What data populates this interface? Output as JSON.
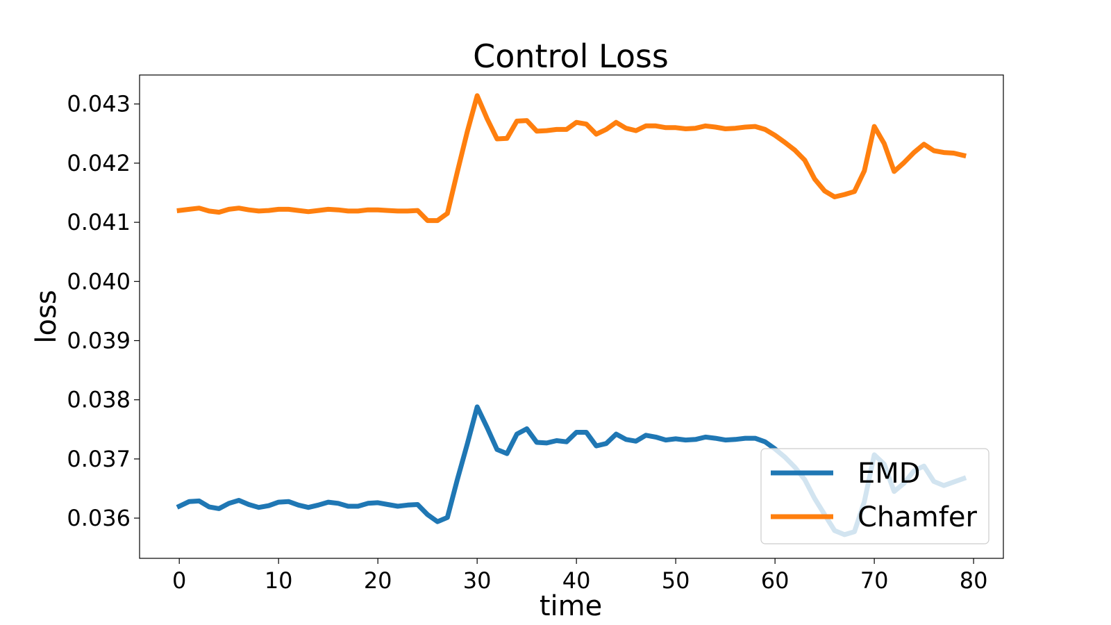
{
  "chart_data": {
    "type": "line",
    "title": "Control Loss",
    "xlabel": "time",
    "ylabel": "loss",
    "xlim": [
      -4,
      83
    ],
    "ylim": [
      0.03532,
      0.04349
    ],
    "xticks": [
      0,
      10,
      20,
      30,
      40,
      50,
      60,
      70,
      80
    ],
    "xtick_labels": [
      "0",
      "10",
      "20",
      "30",
      "40",
      "50",
      "60",
      "70",
      "80"
    ],
    "yticks": [
      0.036,
      0.037,
      0.038,
      0.039,
      0.04,
      0.041,
      0.042,
      0.043
    ],
    "ytick_labels": [
      "0.036",
      "0.037",
      "0.038",
      "0.039",
      "0.040",
      "0.041",
      "0.042",
      "0.043"
    ],
    "grid": false,
    "legend_position": "bottom-right",
    "x": [
      0,
      1,
      2,
      3,
      4,
      5,
      6,
      7,
      8,
      9,
      10,
      11,
      12,
      13,
      14,
      15,
      16,
      17,
      18,
      19,
      20,
      21,
      22,
      23,
      24,
      25,
      26,
      27,
      28,
      29,
      30,
      31,
      32,
      33,
      34,
      35,
      36,
      37,
      38,
      39,
      40,
      41,
      42,
      43,
      44,
      45,
      46,
      47,
      48,
      49,
      50,
      51,
      52,
      53,
      54,
      55,
      56,
      57,
      58,
      59,
      60,
      61,
      62,
      63,
      64,
      65,
      66,
      67,
      68,
      69,
      70,
      71,
      72,
      73,
      74,
      75,
      76,
      77,
      78,
      79
    ],
    "series": [
      {
        "name": "EMD",
        "color": "#1f77b4",
        "values": [
          0.0362,
          0.03628,
          0.03629,
          0.03619,
          0.03616,
          0.03625,
          0.0363,
          0.03623,
          0.03618,
          0.03621,
          0.03627,
          0.03628,
          0.03622,
          0.03618,
          0.03622,
          0.03627,
          0.03625,
          0.0362,
          0.0362,
          0.03625,
          0.03626,
          0.03623,
          0.0362,
          0.03622,
          0.03623,
          0.03606,
          0.03594,
          0.03601,
          0.03665,
          0.03725,
          0.03788,
          0.03753,
          0.03716,
          0.03709,
          0.03742,
          0.03751,
          0.03728,
          0.03727,
          0.03731,
          0.03729,
          0.03745,
          0.03745,
          0.03722,
          0.03726,
          0.03742,
          0.03733,
          0.0373,
          0.0374,
          0.03737,
          0.03732,
          0.03734,
          0.03732,
          0.03733,
          0.03737,
          0.03735,
          0.03732,
          0.03733,
          0.03735,
          0.03735,
          0.03729,
          0.03717,
          0.03703,
          0.03686,
          0.03665,
          0.03633,
          0.03606,
          0.03579,
          0.03572,
          0.03577,
          0.03628,
          0.03707,
          0.03691,
          0.03645,
          0.03659,
          0.0368,
          0.03688,
          0.03662,
          0.03655,
          0.03661,
          0.03667
        ]
      },
      {
        "name": "Chamfer",
        "color": "#ff7f0e",
        "values": [
          0.0412,
          0.04122,
          0.04124,
          0.04119,
          0.04117,
          0.04122,
          0.04124,
          0.04121,
          0.04119,
          0.0412,
          0.04122,
          0.04122,
          0.0412,
          0.04118,
          0.0412,
          0.04122,
          0.04121,
          0.04119,
          0.04119,
          0.04121,
          0.04121,
          0.0412,
          0.04119,
          0.04119,
          0.0412,
          0.04103,
          0.04103,
          0.04115,
          0.04185,
          0.04253,
          0.04314,
          0.04275,
          0.04241,
          0.04242,
          0.04271,
          0.04272,
          0.04254,
          0.04255,
          0.04257,
          0.04257,
          0.04269,
          0.04266,
          0.04249,
          0.04257,
          0.04269,
          0.04259,
          0.04255,
          0.04263,
          0.04263,
          0.0426,
          0.0426,
          0.04258,
          0.04259,
          0.04263,
          0.04261,
          0.04258,
          0.04259,
          0.04261,
          0.04262,
          0.04257,
          0.04247,
          0.04235,
          0.04222,
          0.04205,
          0.04173,
          0.04153,
          0.04143,
          0.04147,
          0.04152,
          0.04187,
          0.04262,
          0.04233,
          0.04186,
          0.04201,
          0.04218,
          0.04232,
          0.04221,
          0.04218,
          0.04217,
          0.04213
        ]
      }
    ]
  }
}
